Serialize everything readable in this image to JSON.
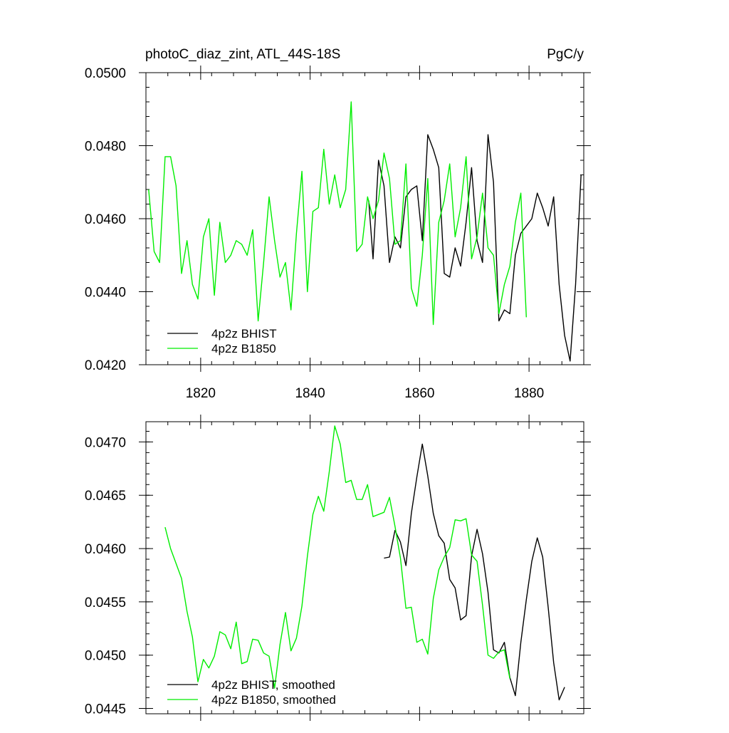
{
  "chart_data": [
    {
      "type": "line",
      "title": "photoC_diaz_zint, ATL_44S-18S",
      "units": "PgC/y",
      "xlim": [
        1810,
        1890
      ],
      "ylim": [
        0.042,
        0.05
      ],
      "x_ticks": [
        1820,
        1840,
        1860,
        1880
      ],
      "x_tick_labels": [
        "1820",
        "1840",
        "1860",
        "1880"
      ],
      "y_ticks": [
        0.042,
        0.044,
        0.046,
        0.048,
        0.05
      ],
      "y_tick_labels": [
        "0.0420",
        "0.0440",
        "0.0460",
        "0.0480",
        "0.0500"
      ],
      "legend": "bottom-left",
      "grid": false,
      "series": [
        {
          "name": "4p2z BHIST",
          "color": "#000000",
          "x": [
            1850.7,
            1851.5,
            1852.5,
            1853.5,
            1854.5,
            1855.5,
            1856.5,
            1857.5,
            1858.5,
            1859.5,
            1860.5,
            1861.5,
            1862.5,
            1863.5,
            1864.5,
            1865.5,
            1866.5,
            1867.5,
            1868.5,
            1869.5,
            1870.5,
            1871.5,
            1872.5,
            1873.5,
            1874.5,
            1875.5,
            1876.5,
            1877.5,
            1878.5,
            1879.5,
            1880.5,
            1881.5,
            1882.5,
            1883.5,
            1884.5,
            1885.5,
            1886.5,
            1887.5,
            1888.5,
            1889.5
          ],
          "y": [
            0.0465,
            0.0449,
            0.0476,
            0.0469,
            0.0448,
            0.0455,
            0.0452,
            0.0466,
            0.0468,
            0.0469,
            0.0454,
            0.0483,
            0.0479,
            0.0474,
            0.0445,
            0.0444,
            0.0452,
            0.0447,
            0.0459,
            0.0474,
            0.0454,
            0.0448,
            0.0483,
            0.047,
            0.0432,
            0.0435,
            0.0434,
            0.045,
            0.0456,
            0.0458,
            0.046,
            0.0467,
            0.0463,
            0.0458,
            0.0466,
            0.0442,
            0.0428,
            0.0421,
            0.0442,
            0.0472
          ]
        },
        {
          "name": "4p2z B1850",
          "color": "#00ee00",
          "x": [
            1810.5,
            1811.5,
            1812.5,
            1813.5,
            1814.5,
            1815.5,
            1816.5,
            1817.5,
            1818.5,
            1819.5,
            1820.5,
            1821.5,
            1822.5,
            1823.5,
            1824.5,
            1825.5,
            1826.5,
            1827.5,
            1828.5,
            1829.5,
            1830.5,
            1831.5,
            1832.5,
            1833.5,
            1834.5,
            1835.5,
            1836.5,
            1837.5,
            1838.5,
            1839.5,
            1840.5,
            1841.5,
            1842.5,
            1843.5,
            1844.5,
            1845.5,
            1846.5,
            1847.5,
            1848.5,
            1849.5,
            1850.5,
            1851.5,
            1852.5,
            1853.5,
            1854.5,
            1855.5,
            1856.5,
            1857.5,
            1858.5,
            1859.5,
            1860.5,
            1861.5,
            1862.5,
            1863.5,
            1864.5,
            1865.5,
            1866.5,
            1867.5,
            1868.5,
            1869.5,
            1870.5,
            1871.5,
            1872.5,
            1873.5,
            1874.5,
            1875.5,
            1876.5,
            1877.5,
            1878.5,
            1879.5
          ],
          "y": [
            0.0468,
            0.0451,
            0.0448,
            0.0477,
            0.0477,
            0.0469,
            0.0445,
            0.0454,
            0.0442,
            0.0438,
            0.0455,
            0.046,
            0.0439,
            0.0459,
            0.0448,
            0.045,
            0.0454,
            0.0453,
            0.045,
            0.0457,
            0.0432,
            0.0448,
            0.0466,
            0.0454,
            0.0444,
            0.0448,
            0.0435,
            0.0456,
            0.0473,
            0.044,
            0.0462,
            0.0463,
            0.0479,
            0.0464,
            0.0472,
            0.0463,
            0.0468,
            0.0492,
            0.0451,
            0.0453,
            0.0466,
            0.046,
            0.0465,
            0.0478,
            0.0471,
            0.0453,
            0.0454,
            0.0475,
            0.0441,
            0.0436,
            0.045,
            0.0471,
            0.0431,
            0.0459,
            0.0465,
            0.0475,
            0.0455,
            0.0463,
            0.0477,
            0.0449,
            0.0455,
            0.0467,
            0.0452,
            0.045,
            0.0434,
            0.0442,
            0.0447,
            0.0459,
            0.0467,
            0.0433
          ]
        }
      ]
    },
    {
      "type": "line",
      "xlim": [
        1810,
        1890
      ],
      "ylim": [
        0.04445,
        0.04719
      ],
      "x_ticks": [
        1820,
        1840,
        1860,
        1880
      ],
      "y_ticks": [
        0.0445,
        0.045,
        0.0455,
        0.046,
        0.0465,
        0.047
      ],
      "y_tick_labels": [
        "0.0445",
        "0.0450",
        "0.0455",
        "0.0460",
        "0.0465",
        "0.0470"
      ],
      "legend": "bottom-left",
      "grid": false,
      "series": [
        {
          "name": "4p2z BHIST, smoothed",
          "color": "#000000",
          "x": [
            1853.5,
            1854.5,
            1855.5,
            1856.5,
            1857.5,
            1858.5,
            1859.5,
            1860.5,
            1861.5,
            1862.5,
            1863.5,
            1864.5,
            1865.5,
            1866.5,
            1867.5,
            1868.5,
            1869.5,
            1870.5,
            1871.5,
            1872.5,
            1873.5,
            1874.5,
            1875.5,
            1876.5,
            1877.5,
            1878.5,
            1879.5,
            1880.5,
            1881.5,
            1882.5,
            1883.5,
            1884.5,
            1885.5,
            1886.5
          ],
          "y": [
            0.04591,
            0.04592,
            0.04617,
            0.04606,
            0.04584,
            0.04633,
            0.04667,
            0.04698,
            0.04668,
            0.04633,
            0.04612,
            0.04605,
            0.04571,
            0.04563,
            0.04533,
            0.04537,
            0.04593,
            0.04618,
            0.04595,
            0.04559,
            0.04505,
            0.04502,
            0.04512,
            0.04479,
            0.04462,
            0.04512,
            0.04552,
            0.04588,
            0.0461,
            0.04592,
            0.04545,
            0.04493,
            0.04458,
            0.0447
          ]
        },
        {
          "name": "4p2z B1850, smoothed",
          "color": "#00ee00",
          "x": [
            1813.5,
            1814.5,
            1815.5,
            1816.5,
            1817.5,
            1818.5,
            1819.5,
            1820.5,
            1821.5,
            1822.5,
            1823.5,
            1824.5,
            1825.5,
            1826.5,
            1827.5,
            1828.5,
            1829.5,
            1830.5,
            1831.5,
            1832.5,
            1833.5,
            1834.5,
            1835.5,
            1836.5,
            1837.5,
            1838.5,
            1839.5,
            1840.5,
            1841.5,
            1842.5,
            1843.5,
            1844.5,
            1845.5,
            1846.5,
            1847.5,
            1848.5,
            1849.5,
            1850.5,
            1851.5,
            1852.5,
            1853.5,
            1854.5,
            1855.5,
            1856.5,
            1857.5,
            1858.5,
            1859.5,
            1860.5,
            1861.5,
            1862.5,
            1863.5,
            1864.5,
            1865.5,
            1866.5,
            1867.5,
            1868.5,
            1869.5,
            1870.5,
            1871.5,
            1872.5,
            1873.5,
            1874.5,
            1875.5,
            1876.5
          ],
          "y": [
            0.0462,
            0.046,
            0.04586,
            0.04572,
            0.04541,
            0.04517,
            0.04475,
            0.04496,
            0.04488,
            0.04499,
            0.04522,
            0.04519,
            0.04506,
            0.04531,
            0.04492,
            0.04494,
            0.04515,
            0.04514,
            0.04502,
            0.04499,
            0.04469,
            0.0451,
            0.0454,
            0.04504,
            0.04516,
            0.04546,
            0.04593,
            0.04632,
            0.04649,
            0.04635,
            0.04672,
            0.04715,
            0.04698,
            0.04662,
            0.04664,
            0.04646,
            0.04646,
            0.0466,
            0.0463,
            0.04632,
            0.04634,
            0.04648,
            0.04621,
            0.04591,
            0.04544,
            0.04545,
            0.04512,
            0.04515,
            0.04501,
            0.04553,
            0.0458,
            0.04592,
            0.04601,
            0.04627,
            0.04626,
            0.04628,
            0.04594,
            0.04588,
            0.04547,
            0.045,
            0.04497,
            0.04503,
            0.04505,
            0.04478
          ]
        }
      ]
    }
  ]
}
